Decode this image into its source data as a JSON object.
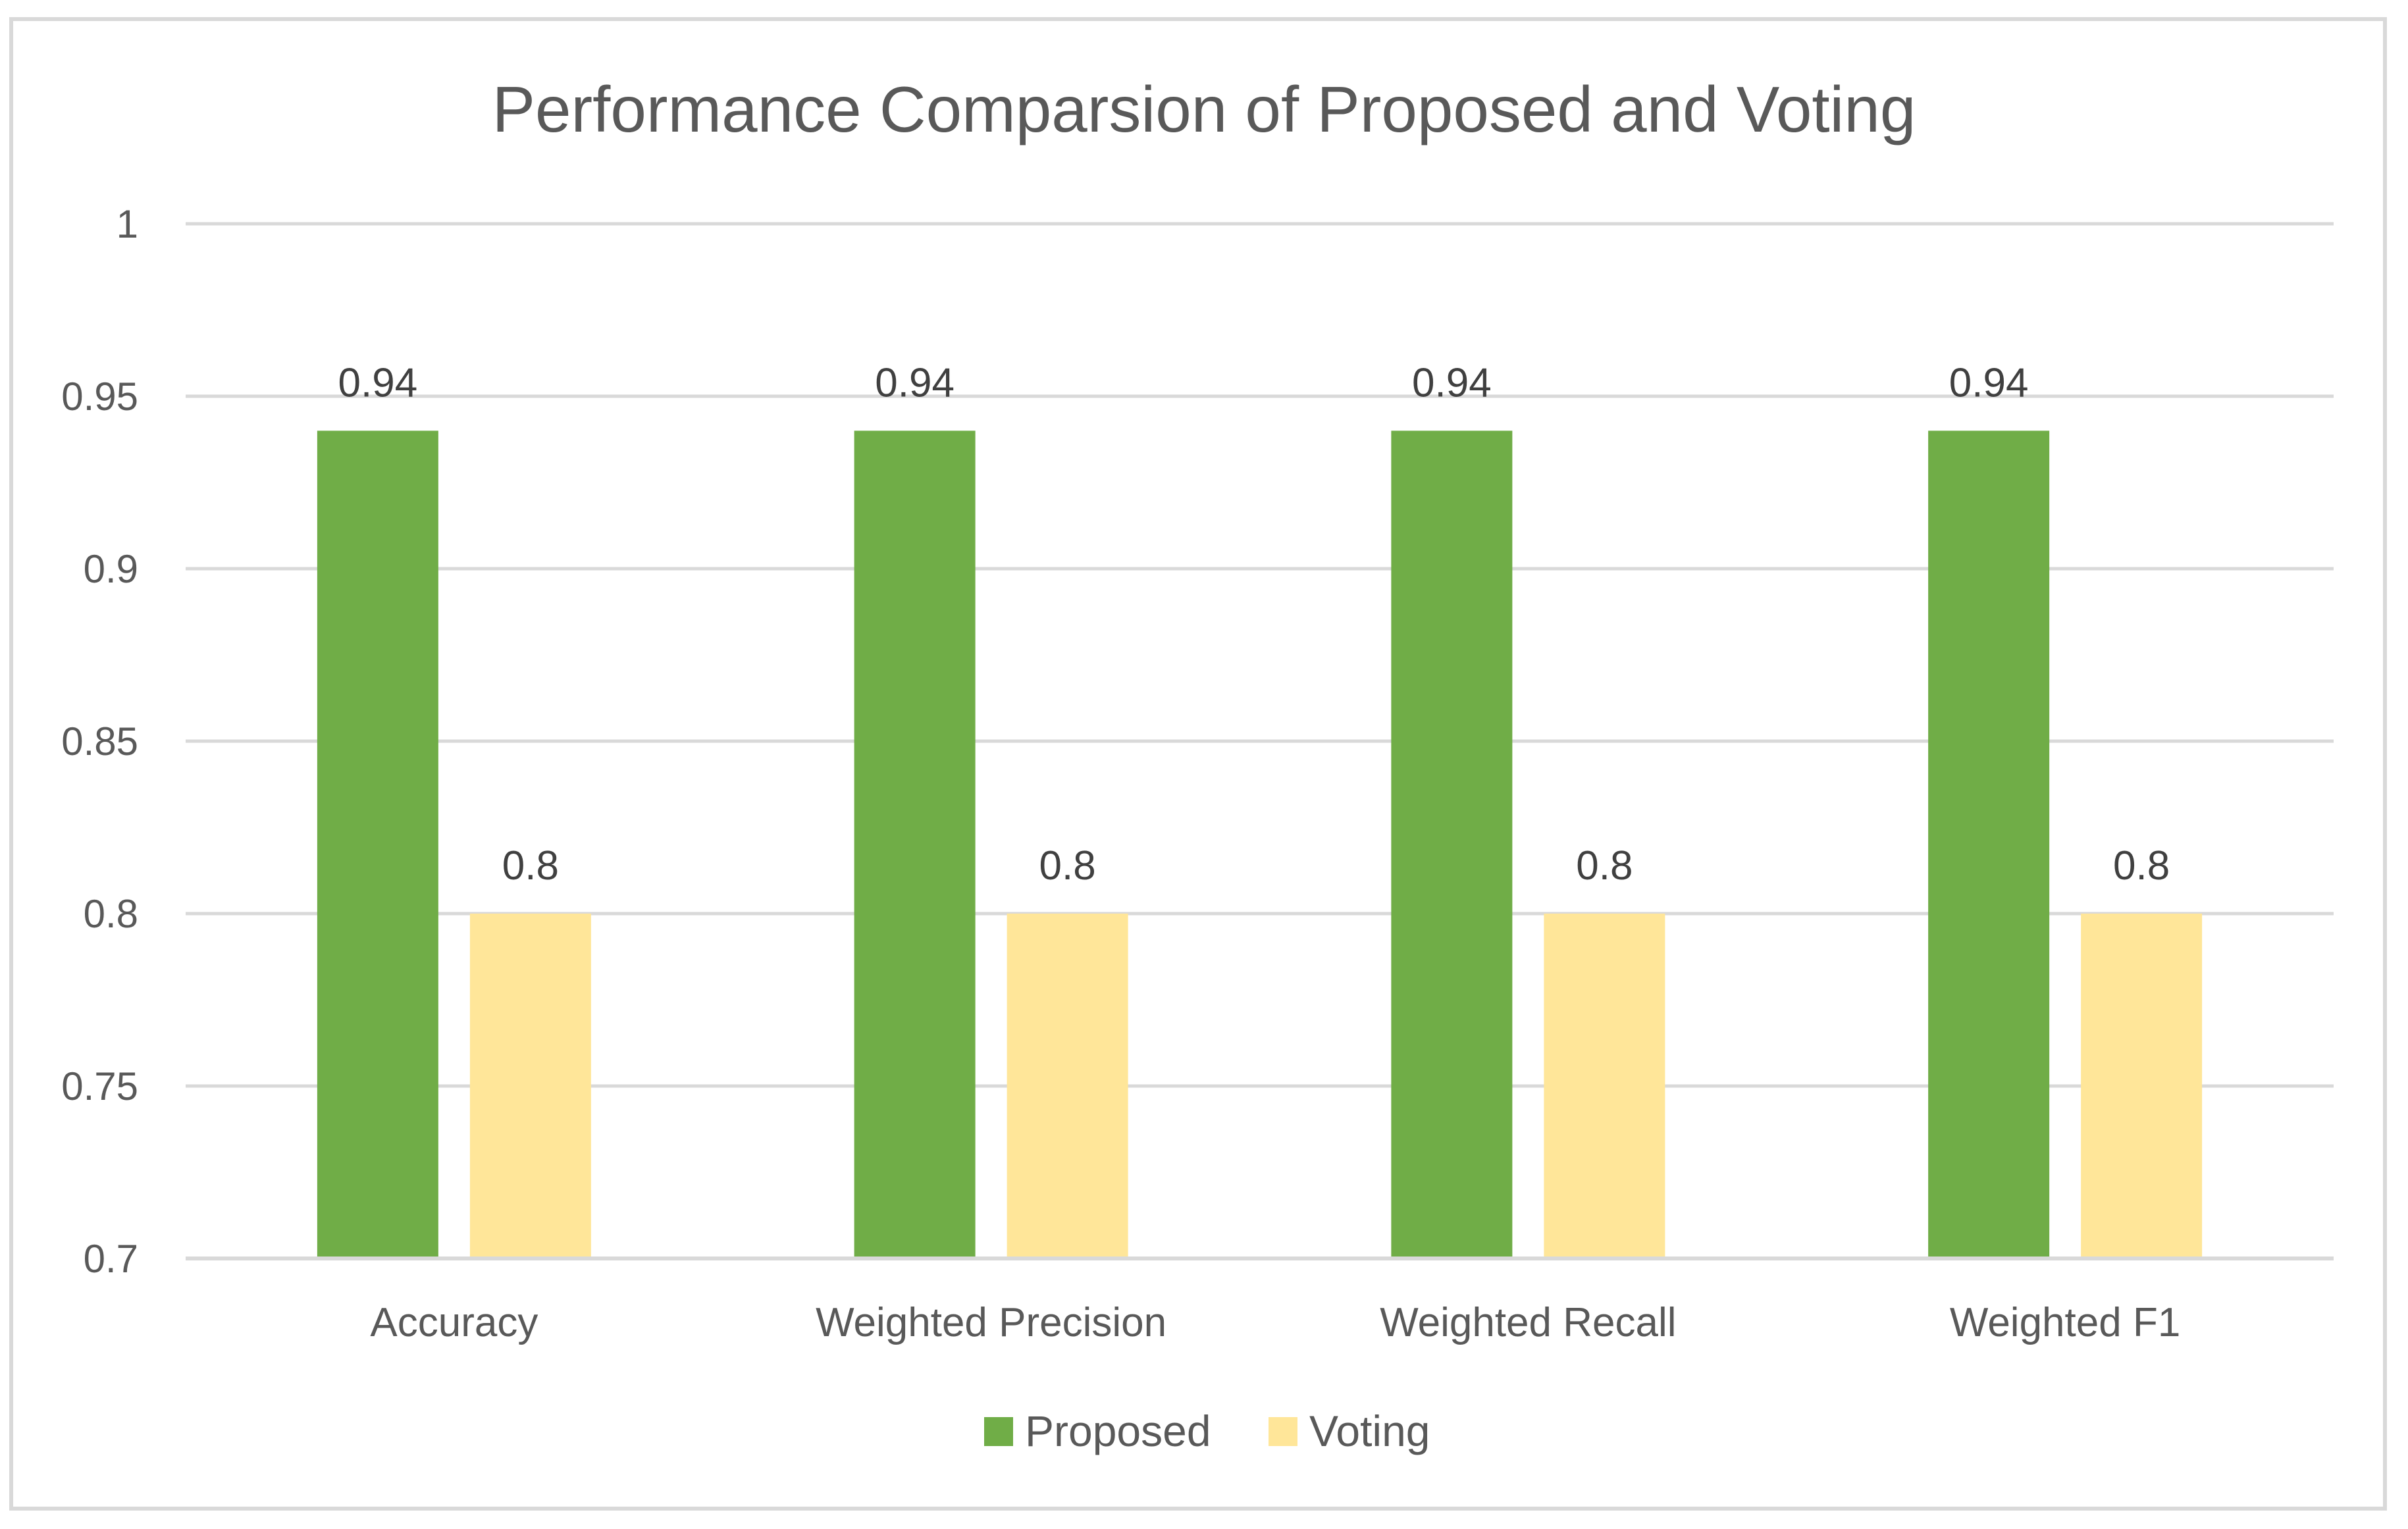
{
  "chart_data": {
    "type": "bar",
    "title": "Performance Comparsion of Proposed and Voting",
    "xlabel": "",
    "ylabel": "",
    "categories": [
      "Accuracy",
      "Weighted Precision",
      "Weighted Recall",
      "Weighted F1"
    ],
    "series": [
      {
        "name": "Proposed",
        "values": [
          0.94,
          0.94,
          0.94,
          0.94
        ],
        "labels": [
          "0.94",
          "0.94",
          "0.94",
          "0.94"
        ],
        "color": "#70ad47"
      },
      {
        "name": "Voting",
        "values": [
          0.8,
          0.8,
          0.8,
          0.8
        ],
        "labels": [
          "0.8",
          "0.8",
          "0.8",
          "0.8"
        ],
        "color": "#ffe699"
      }
    ],
    "ylim": [
      0.7,
      1
    ],
    "yticks": [
      0.7,
      0.75,
      0.8,
      0.85,
      0.9,
      0.95,
      1
    ],
    "ytick_labels": [
      "0.7",
      "0.75",
      "0.8",
      "0.85",
      "0.9",
      "0.95",
      "1"
    ],
    "grid": true,
    "gridline_color": "#d9d9d9",
    "legend_position": "bottom"
  }
}
